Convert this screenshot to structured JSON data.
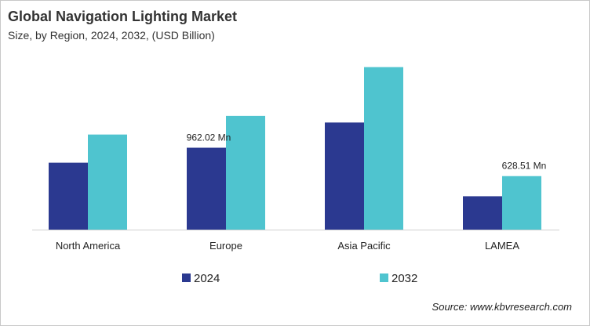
{
  "chart_data": {
    "type": "bar",
    "title": "Global Navigation Lighting Market",
    "subtitle": "Size, by Region, 2024, 2032, (USD Billion)",
    "categories": [
      "North America",
      "Europe",
      "Asia Pacific",
      "LAMEA"
    ],
    "series": [
      {
        "name": "2024",
        "color": "#2B3990",
        "values": [
          786,
          962.02,
          1258,
          392
        ]
      },
      {
        "name": "2032",
        "color": "#4FC4CF",
        "values": [
          1117,
          1336,
          1909,
          628.51
        ]
      }
    ],
    "data_labels": [
      {
        "series": 0,
        "category": 1,
        "text": "962.02 Mn"
      },
      {
        "series": 1,
        "category": 3,
        "text": "628.51 Mn"
      }
    ],
    "xlabel": "",
    "ylabel": "",
    "ylim": [
      0,
      2000
    ],
    "grid": false,
    "legend": "bottom"
  },
  "source": "Source: www.kbvresearch.com"
}
